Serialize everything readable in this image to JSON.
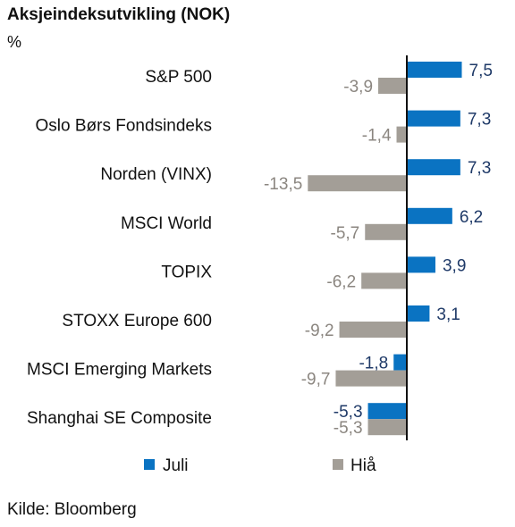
{
  "title": "Aksjeindeksutvikling (NOK)",
  "unit": "%",
  "source": "Kilde: Bloomberg",
  "colors": {
    "juli": "#0a73c2",
    "hia": "#a39e97",
    "juli_label": "#1f3a68",
    "hia_label": "#8b8680"
  },
  "chart_data": {
    "type": "bar",
    "orientation": "horizontal",
    "categories": [
      "S&P 500",
      "Oslo Børs Fondsindeks",
      "Norden (VINX)",
      "MSCI World",
      "TOPIX",
      "STOXX Europe 600",
      "MSCI Emerging Markets",
      "Shanghai SE Composite"
    ],
    "series": [
      {
        "name": "Juli",
        "values": [
          7.5,
          7.3,
          7.3,
          6.2,
          3.9,
          3.1,
          -1.8,
          -5.3
        ],
        "labels": [
          "7,5",
          "7,3",
          "7,3",
          "6,2",
          "3,9",
          "3,1",
          "-1,8",
          "-5,3"
        ]
      },
      {
        "name": "Hiå",
        "values": [
          -3.9,
          -1.4,
          -13.5,
          -5.7,
          -6.2,
          -9.2,
          -9.7,
          -5.3
        ],
        "labels": [
          "-3,9",
          "-1,4",
          "-13,5",
          "-5,7",
          "-6,2",
          "-9,2",
          "-9,7",
          "-5,3"
        ]
      }
    ],
    "legend": "bottom",
    "grid": false
  }
}
